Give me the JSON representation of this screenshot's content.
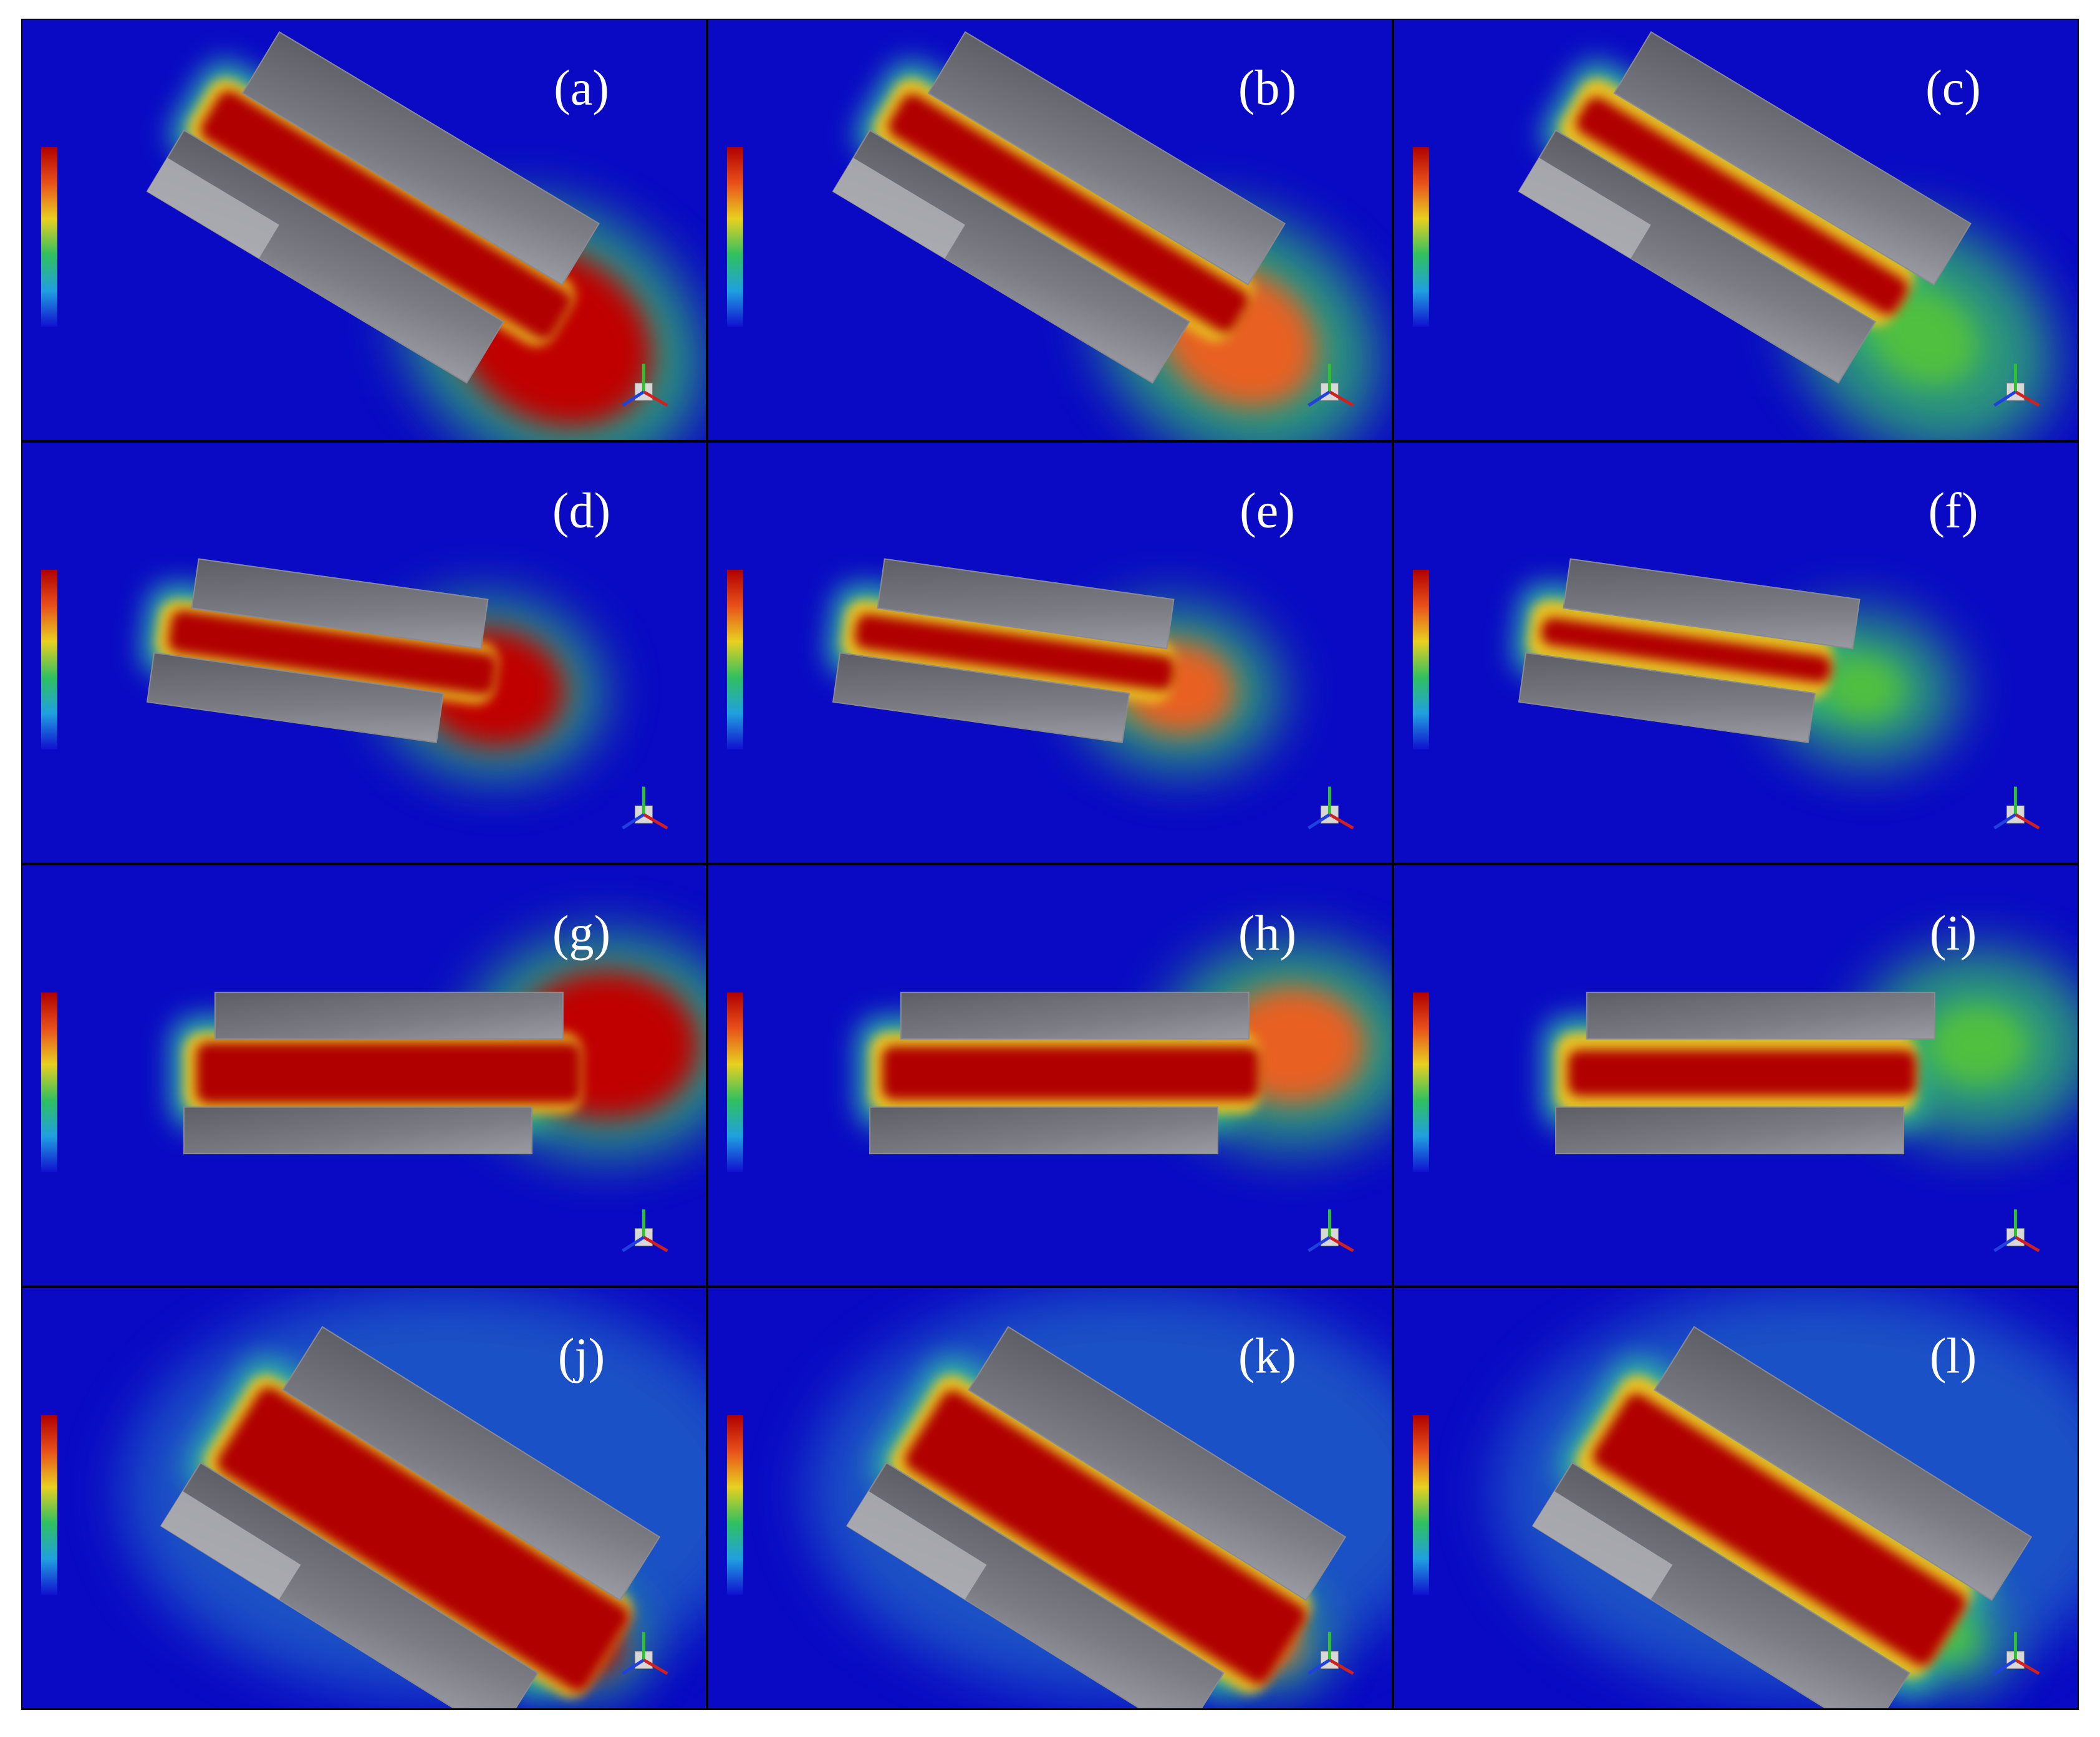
{
  "panels": [
    "(a)",
    "(b)",
    "(c)",
    "(d)",
    "(e)",
    "(f)",
    "(g)",
    "(h)",
    "(i)",
    "(j)",
    "(k)",
    "(l)"
  ]
}
